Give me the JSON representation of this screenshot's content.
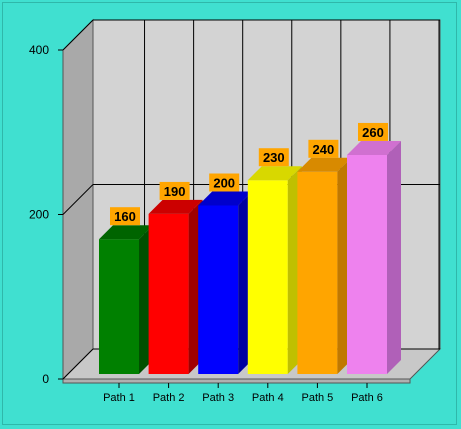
{
  "chart_data": {
    "type": "bar",
    "categories": [
      "Path 1",
      "Path 2",
      "Path 3",
      "Path 4",
      "Path 5",
      "Path 6"
    ],
    "values": [
      160,
      190,
      200,
      230,
      240,
      260
    ],
    "ylim": [
      0,
      400
    ],
    "yticks": [
      0,
      200,
      400
    ],
    "grid": true,
    "three_d": true,
    "data_labels": true,
    "colors": {
      "bars": [
        "#008000",
        "#FF0000",
        "#0000FF",
        "#FFFF00",
        "#FFA500",
        "#EE82EE"
      ],
      "bar_tops": [
        "#006400",
        "#CC0000",
        "#0000CC",
        "#D8D800",
        "#D88A00",
        "#D070D0"
      ],
      "bar_sides": [
        "#005000",
        "#A00000",
        "#0000A0",
        "#C0C000",
        "#C07800",
        "#B060B8"
      ],
      "label_background": "#FFA500",
      "background": "#40E0D0",
      "plot_back_wall": "#D3D3D3",
      "plot_side_wall": "#A9A9A9",
      "plot_floor": "#C8C8C8"
    }
  }
}
